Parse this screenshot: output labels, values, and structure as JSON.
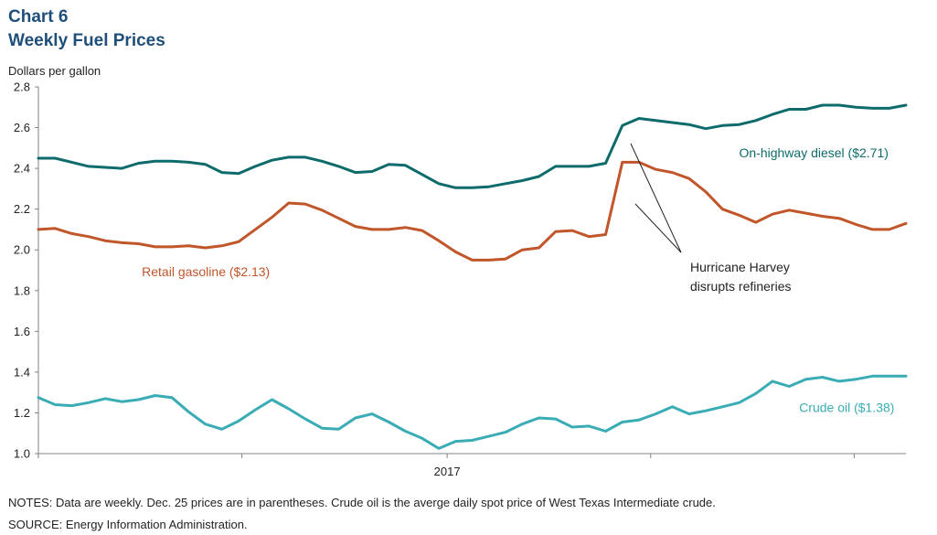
{
  "title": "Chart 6",
  "subtitle": "Weekly Fuel Prices",
  "notes": "NOTES:  Data are weekly. Dec. 25 prices are in parentheses. Crude oil is the averge daily spot price of West Texas Intermediate crude.",
  "source": "SOURCE:  Energy Information Administration.",
  "chart_data": {
    "type": "line",
    "ylabel": "Dollars per gallon",
    "ylim": [
      1.0,
      2.8
    ],
    "yticks": [
      "1.0",
      "1.2",
      "1.4",
      "1.6",
      "1.8",
      "2.0",
      "2.2",
      "2.4",
      "2.6",
      "2.8"
    ],
    "xlim": [
      0,
      52
    ],
    "x_tick_positions": [
      0,
      12.2,
      24.5,
      36.7,
      48.9
    ],
    "x_year_label": {
      "text": "2017",
      "x": 24.5
    },
    "grid": false,
    "colors": {
      "diesel": "#0e6b6b",
      "gasoline": "#c0562a",
      "crude": "#3aacb5"
    },
    "series": [
      {
        "key": "diesel",
        "name": "On-highway diesel ($2.71)",
        "values": [
          2.45,
          2.45,
          2.43,
          2.41,
          2.405,
          2.4,
          2.425,
          2.435,
          2.435,
          2.43,
          2.42,
          2.38,
          2.375,
          2.41,
          2.44,
          2.455,
          2.455,
          2.435,
          2.41,
          2.38,
          2.385,
          2.42,
          2.415,
          2.37,
          2.325,
          2.305,
          2.305,
          2.31,
          2.325,
          2.34,
          2.36,
          2.41,
          2.41,
          2.41,
          2.425,
          2.61,
          2.645,
          2.635,
          2.625,
          2.615,
          2.595,
          2.61,
          2.615,
          2.635,
          2.665,
          2.69,
          2.69,
          2.71,
          2.71,
          2.7,
          2.695,
          2.695,
          2.71
        ]
      },
      {
        "key": "gasoline",
        "name": "Retail gasoline ($2.13)",
        "values": [
          2.1,
          2.105,
          2.08,
          2.065,
          2.045,
          2.035,
          2.03,
          2.015,
          2.015,
          2.02,
          2.01,
          2.02,
          2.04,
          2.1,
          2.16,
          2.23,
          2.225,
          2.195,
          2.155,
          2.115,
          2.1,
          2.1,
          2.11,
          2.095,
          2.045,
          1.99,
          1.95,
          1.95,
          1.955,
          2.0,
          2.01,
          2.09,
          2.095,
          2.065,
          2.075,
          2.43,
          2.43,
          2.395,
          2.38,
          2.35,
          2.285,
          2.2,
          2.17,
          2.135,
          2.175,
          2.195,
          2.18,
          2.165,
          2.155,
          2.125,
          2.1,
          2.1,
          2.13
        ]
      },
      {
        "key": "crude",
        "name": "Crude oil ($1.38)",
        "values": [
          1.275,
          1.24,
          1.235,
          1.25,
          1.27,
          1.255,
          1.265,
          1.285,
          1.275,
          1.205,
          1.145,
          1.12,
          1.16,
          1.215,
          1.265,
          1.22,
          1.17,
          1.125,
          1.12,
          1.175,
          1.195,
          1.155,
          1.11,
          1.075,
          1.025,
          1.06,
          1.065,
          1.085,
          1.105,
          1.145,
          1.175,
          1.17,
          1.13,
          1.135,
          1.11,
          1.155,
          1.165,
          1.195,
          1.23,
          1.195,
          1.21,
          1.23,
          1.25,
          1.295,
          1.355,
          1.33,
          1.365,
          1.375,
          1.355,
          1.365,
          1.38,
          1.38,
          1.38
        ]
      }
    ],
    "series_label_positions": {
      "diesel": {
        "x": 42.0,
        "y": 2.455
      },
      "gasoline": {
        "x": 6.2,
        "y": 1.87
      },
      "crude": {
        "x": 45.6,
        "y": 1.205
      }
    },
    "annotation": {
      "lines": [
        "Hurricane Harvey",
        "disrupts refineries"
      ]
    }
  }
}
